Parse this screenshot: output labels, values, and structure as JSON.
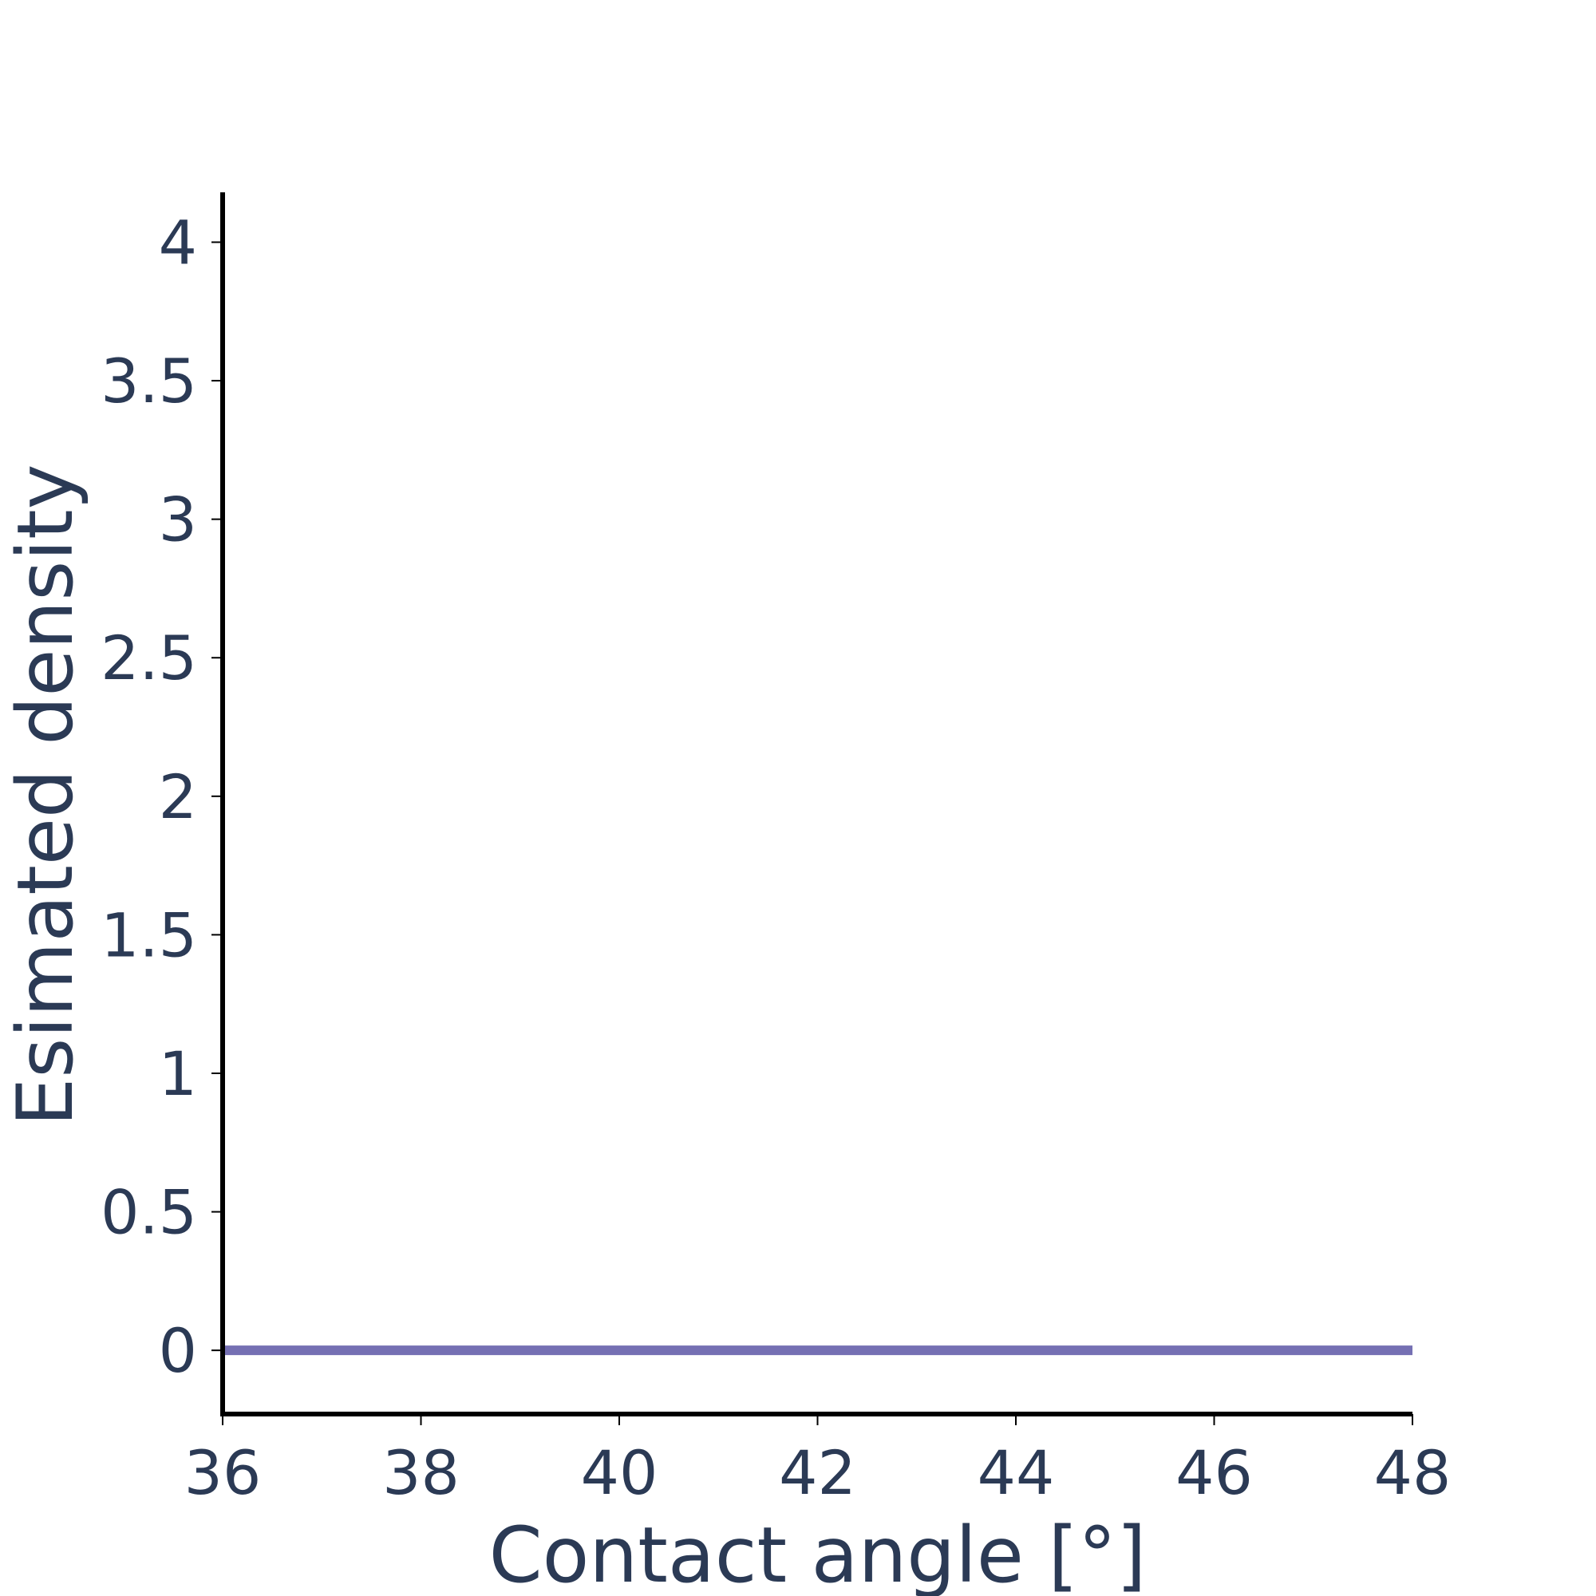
{
  "chart_data": {
    "type": "line",
    "title": "",
    "xlabel": "Contact angle [°]",
    "ylabel": "Esimated density",
    "xlim": [
      36,
      48
    ],
    "ylim": [
      -0.23,
      4.18
    ],
    "x_ticks": [
      36,
      38,
      40,
      42,
      44,
      46,
      48
    ],
    "y_ticks": [
      0,
      0.5,
      1,
      1.5,
      2,
      2.5,
      3,
      3.5,
      4
    ],
    "grid": false,
    "series": [
      {
        "color": "#7570b3",
        "x": [
          36,
          38,
          40,
          42,
          44,
          46,
          48
        ],
        "y": [
          0,
          0,
          0,
          0,
          0,
          0,
          0
        ]
      }
    ]
  }
}
